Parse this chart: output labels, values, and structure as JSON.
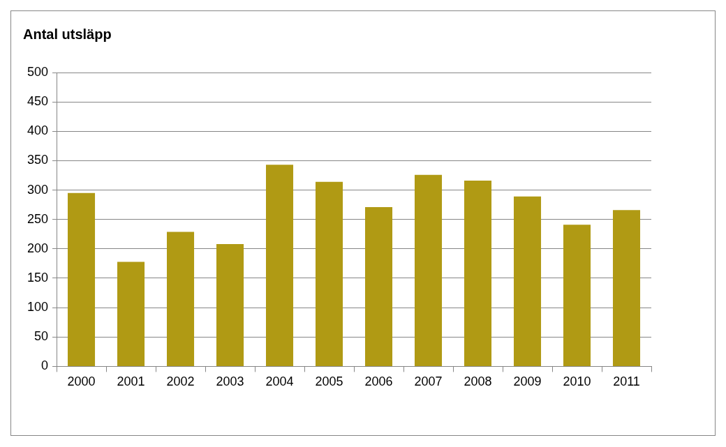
{
  "chart_data": {
    "type": "bar",
    "title": "Antal utsläpp",
    "categories": [
      "2000",
      "2001",
      "2002",
      "2003",
      "2004",
      "2005",
      "2006",
      "2007",
      "2008",
      "2009",
      "2010",
      "2011"
    ],
    "values": [
      295,
      178,
      229,
      208,
      343,
      314,
      271,
      326,
      316,
      289,
      241,
      266
    ],
    "color": "#b09a14",
    "ylim": [
      0,
      500
    ],
    "yticks": [
      0,
      50,
      100,
      150,
      200,
      250,
      300,
      350,
      400,
      450,
      500
    ],
    "grid": "y",
    "legend": false
  }
}
